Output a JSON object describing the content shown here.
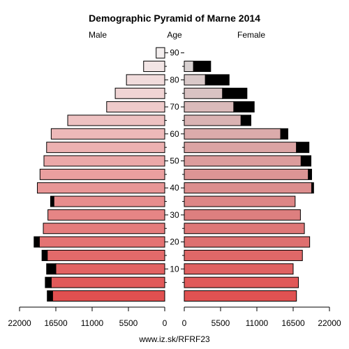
{
  "chart_data": {
    "type": "bar",
    "title": "Demographic Pyramid of Marne 2014",
    "left_label": "Male",
    "center_label": "Age",
    "right_label": "Female",
    "source": "www.iz.sk/RFRF23",
    "age_ticks": [
      "10",
      "20",
      "30",
      "40",
      "50",
      "60",
      "70",
      "80",
      "90"
    ],
    "x_ticks_left": [
      "22000",
      "16500",
      "11000",
      "5500",
      "0"
    ],
    "x_ticks_right": [
      "0",
      "5500",
      "11000",
      "16500",
      "22000"
    ],
    "xlim": [
      0,
      22000
    ],
    "age_groups": [
      "0-4",
      "5-9",
      "10-14",
      "15-19",
      "20-24",
      "25-29",
      "30-34",
      "35-39",
      "40-44",
      "45-49",
      "50-54",
      "55-59",
      "60-64",
      "65-69",
      "70-74",
      "75-79",
      "80-84",
      "85-89",
      "90+"
    ],
    "series": [
      {
        "name": "Male",
        "values": [
          17000,
          17200,
          16500,
          17800,
          19000,
          18400,
          17700,
          16800,
          19300,
          18900,
          18300,
          17900,
          17200,
          14700,
          8800,
          7500,
          5800,
          3200,
          1300
        ],
        "excess": [
          800,
          900,
          1400,
          800,
          800,
          0,
          0,
          500,
          0,
          0,
          0,
          0,
          0,
          0,
          0,
          0,
          0,
          0,
          0
        ]
      },
      {
        "name": "Female",
        "values": [
          17000,
          17300,
          16500,
          17900,
          19000,
          18200,
          17600,
          16800,
          19300,
          18800,
          17700,
          17000,
          14600,
          8600,
          7500,
          5800,
          3200,
          1400,
          0
        ],
        "excess": [
          0,
          0,
          0,
          0,
          0,
          0,
          0,
          0,
          300,
          500,
          1500,
          1900,
          1100,
          1500,
          3100,
          3700,
          3600,
          2600,
          0
        ]
      }
    ]
  }
}
